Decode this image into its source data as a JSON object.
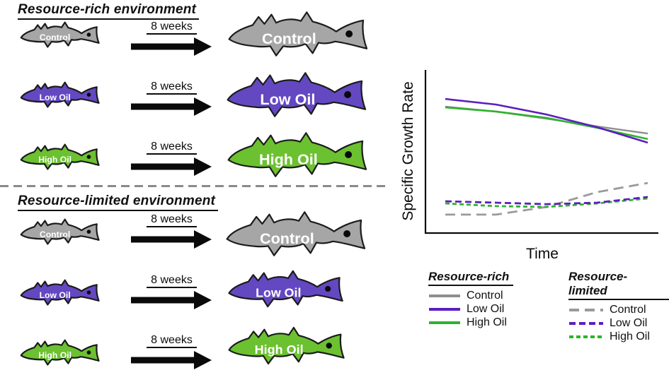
{
  "rich_section": {
    "title": "Resource-rich environment",
    "rows": [
      {
        "label": "Control",
        "duration": "8 weeks",
        "color": "#A6A6A6"
      },
      {
        "label": "Low Oil",
        "duration": "8 weeks",
        "color": "#6448C2"
      },
      {
        "label": "High Oil",
        "duration": "8 weeks",
        "color": "#6BC12F"
      }
    ]
  },
  "limited_section": {
    "title": "Resource-limited environment",
    "rows": [
      {
        "label": "Control",
        "duration": "8 weeks",
        "color": "#A6A6A6"
      },
      {
        "label": "Low Oil",
        "duration": "8 weeks",
        "color": "#6448C2"
      },
      {
        "label": "High Oil",
        "duration": "8 weeks",
        "color": "#6BC12F"
      }
    ]
  },
  "chart_data": {
    "type": "line",
    "title": "",
    "xlabel": "Time",
    "ylabel": "Specific Growth Rate",
    "xlim": [
      0,
      1
    ],
    "ylim": [
      0,
      1
    ],
    "x_ticks": [],
    "y_ticks": [],
    "grid": false,
    "note": "qualitative axes, no tick labels",
    "x": [
      0,
      0.25,
      0.5,
      0.75,
      1
    ],
    "series": [
      {
        "name": "Control",
        "group": "Resource-rich",
        "color": "#8F8F8F",
        "dash": "solid",
        "width": 2.4,
        "y": [
          0.775,
          0.745,
          0.701,
          0.654,
          0.61
        ]
      },
      {
        "name": "High Oil",
        "group": "Resource-rich",
        "color": "#2EB32E",
        "dash": "solid",
        "width": 2.6,
        "y": [
          0.77,
          0.745,
          0.706,
          0.645,
          0.576
        ]
      },
      {
        "name": "Low Oil",
        "group": "Resource-rich",
        "color": "#5C1FBE",
        "dash": "solid",
        "width": 2.6,
        "y": [
          0.822,
          0.788,
          0.727,
          0.649,
          0.554
        ]
      },
      {
        "name": "Control",
        "group": "Resource-limited",
        "color": "#9A9A9A",
        "dash": "14 8",
        "width": 2.8,
        "y": [
          0.113,
          0.113,
          0.16,
          0.251,
          0.307
        ]
      },
      {
        "name": "High Oil",
        "group": "Resource-limited",
        "color": "#2EB32E",
        "dash": "6 4",
        "width": 2.8,
        "y": [
          0.182,
          0.165,
          0.16,
          0.182,
          0.212
        ]
      },
      {
        "name": "Low Oil",
        "group": "Resource-limited",
        "color": "#5C1FBE",
        "dash": "9 5",
        "width": 2.8,
        "y": [
          0.195,
          0.186,
          0.177,
          0.186,
          0.221
        ]
      }
    ],
    "legend": {
      "position": "below",
      "columns": [
        {
          "header": "Resource-rich",
          "items": [
            {
              "label": "Control",
              "series": 0
            },
            {
              "label": "Low Oil",
              "series": 2
            },
            {
              "label": "High Oil",
              "series": 1
            }
          ]
        },
        {
          "header": "Resource-limited",
          "items": [
            {
              "label": "Control",
              "series": 3
            },
            {
              "label": "Low Oil",
              "series": 5
            },
            {
              "label": "High Oil",
              "series": 4
            }
          ]
        }
      ]
    }
  }
}
